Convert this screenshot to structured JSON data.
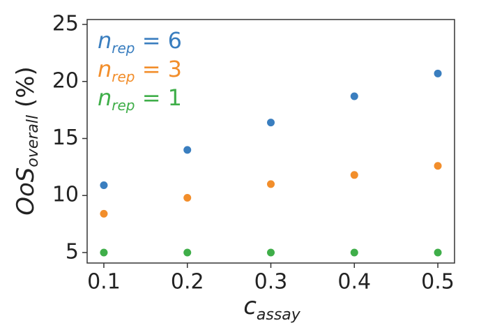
{
  "chart_data": {
    "type": "scatter",
    "x": [
      0.1,
      0.2,
      0.3,
      0.4,
      0.5
    ],
    "series": [
      {
        "name": "n",
        "name_sub": "rep",
        "name_suffix": " = 6",
        "color": "#3a7ebf",
        "values": [
          10.9,
          14.0,
          16.4,
          18.7,
          20.7
        ]
      },
      {
        "name": "n",
        "name_sub": "rep",
        "name_suffix": " = 3",
        "color": "#f28e2b",
        "values": [
          8.4,
          9.8,
          11.0,
          11.8,
          12.6
        ]
      },
      {
        "name": "n",
        "name_sub": "rep",
        "name_suffix": " = 1",
        "color": "#3fae49",
        "values": [
          5,
          5,
          5,
          5,
          5
        ]
      }
    ],
    "xlabel": {
      "text": "c",
      "sub": "assay"
    },
    "ylabel": {
      "text": "OoS",
      "sub": "overall",
      "suffix": " (%)"
    },
    "xlim": [
      0.08,
      0.52
    ],
    "xticks": [
      0.1,
      0.2,
      0.3,
      0.4,
      0.5
    ],
    "ylim": [
      4.08,
      25.43
    ],
    "yticks": [
      5,
      10,
      15,
      20,
      25
    ],
    "legend": "upper left",
    "grid": false
  }
}
